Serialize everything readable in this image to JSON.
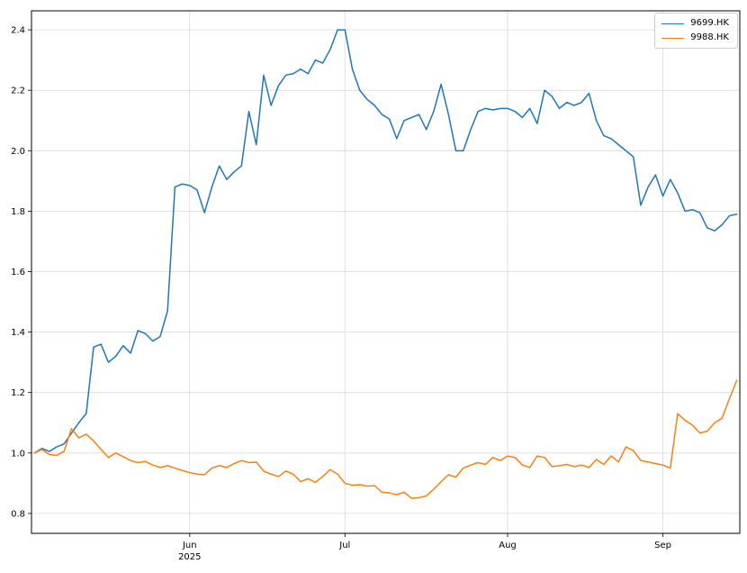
{
  "chart_data": {
    "type": "line",
    "title": "",
    "xlabel": "",
    "ylabel": "",
    "grid": true,
    "x_axis": {
      "tick_labels": [
        "Jun",
        "Jul",
        "Aug",
        "Sep"
      ],
      "tick_indices": [
        21,
        42,
        64,
        85
      ],
      "year_label": "2025",
      "year_under_tick": "Jun",
      "xlim_index": [
        -0.4,
        95.4
      ]
    },
    "y_axis": {
      "ticks": [
        0.8,
        1.0,
        1.2,
        1.4,
        1.6,
        1.8,
        2.0,
        2.2,
        2.4
      ],
      "tick_labels": [
        "0.8",
        "1.0",
        "1.2",
        "1.4",
        "1.6",
        "1.8",
        "2.0",
        "2.2",
        "2.4"
      ],
      "ylim": [
        0.734,
        2.463
      ]
    },
    "legend": {
      "position": "upper-right",
      "entries": [
        "9699.HK",
        "9988.HK"
      ]
    },
    "dates": [
      "2025-05-02",
      "2025-05-05",
      "2025-05-06",
      "2025-05-07",
      "2025-05-08",
      "2025-05-09",
      "2025-05-12",
      "2025-05-13",
      "2025-05-14",
      "2025-05-15",
      "2025-05-16",
      "2025-05-19",
      "2025-05-20",
      "2025-05-21",
      "2025-05-22",
      "2025-05-23",
      "2025-05-26",
      "2025-05-27",
      "2025-05-28",
      "2025-05-29",
      "2025-05-30",
      "2025-06-02",
      "2025-06-03",
      "2025-06-04",
      "2025-06-05",
      "2025-06-06",
      "2025-06-09",
      "2025-06-10",
      "2025-06-11",
      "2025-06-12",
      "2025-06-13",
      "2025-06-16",
      "2025-06-17",
      "2025-06-18",
      "2025-06-19",
      "2025-06-20",
      "2025-06-23",
      "2025-06-24",
      "2025-06-25",
      "2025-06-26",
      "2025-06-27",
      "2025-06-30",
      "2025-07-02",
      "2025-07-03",
      "2025-07-04",
      "2025-07-07",
      "2025-07-08",
      "2025-07-09",
      "2025-07-10",
      "2025-07-11",
      "2025-07-14",
      "2025-07-15",
      "2025-07-16",
      "2025-07-17",
      "2025-07-18",
      "2025-07-21",
      "2025-07-22",
      "2025-07-23",
      "2025-07-24",
      "2025-07-25",
      "2025-07-28",
      "2025-07-29",
      "2025-07-30",
      "2025-07-31",
      "2025-08-01",
      "2025-08-04",
      "2025-08-05",
      "2025-08-06",
      "2025-08-07",
      "2025-08-08",
      "2025-08-11",
      "2025-08-12",
      "2025-08-13",
      "2025-08-14",
      "2025-08-15",
      "2025-08-18",
      "2025-08-19",
      "2025-08-20",
      "2025-08-21",
      "2025-08-22",
      "2025-08-25",
      "2025-08-26",
      "2025-08-27",
      "2025-08-28",
      "2025-08-29",
      "2025-09-01",
      "2025-09-02",
      "2025-09-03",
      "2025-09-04",
      "2025-09-05",
      "2025-09-08",
      "2025-09-09",
      "2025-09-10",
      "2025-09-11",
      "2025-09-12",
      "2025-09-15"
    ],
    "series": [
      {
        "name": "9699.HK",
        "color": "#1f77b4",
        "values": [
          1.0,
          1.015,
          1.005,
          1.02,
          1.03,
          1.065,
          1.1,
          1.13,
          1.35,
          1.36,
          1.3,
          1.32,
          1.355,
          1.33,
          1.405,
          1.395,
          1.37,
          1.385,
          1.47,
          1.88,
          1.89,
          1.885,
          1.87,
          1.795,
          1.88,
          1.95,
          1.905,
          1.93,
          1.95,
          2.13,
          2.02,
          2.25,
          2.15,
          2.215,
          2.25,
          2.255,
          2.27,
          2.255,
          2.3,
          2.29,
          2.335,
          2.4,
          2.4,
          2.27,
          2.2,
          2.17,
          2.15,
          2.12,
          2.105,
          2.04,
          2.1,
          2.11,
          2.12,
          2.07,
          2.13,
          2.22,
          2.12,
          2.0,
          2.0,
          2.07,
          2.13,
          2.14,
          2.135,
          2.14,
          2.14,
          2.13,
          2.11,
          2.14,
          2.09,
          2.2,
          2.18,
          2.14,
          2.16,
          2.15,
          2.16,
          2.19,
          2.1,
          2.05,
          2.04,
          2.02,
          2.0,
          1.98,
          1.82,
          1.88,
          1.92,
          1.85,
          1.905,
          1.86,
          1.8,
          1.805,
          1.795,
          1.745,
          1.735,
          1.755,
          1.785,
          1.79
        ]
      },
      {
        "name": "9988.HK",
        "color": "#ff7f0e",
        "values": [
          1.0,
          1.012,
          0.995,
          0.992,
          1.005,
          1.08,
          1.05,
          1.062,
          1.04,
          1.012,
          0.985,
          1.0,
          0.988,
          0.975,
          0.968,
          0.972,
          0.96,
          0.952,
          0.958,
          0.95,
          0.942,
          0.935,
          0.93,
          0.928,
          0.95,
          0.958,
          0.952,
          0.965,
          0.975,
          0.968,
          0.97,
          0.94,
          0.93,
          0.922,
          0.94,
          0.93,
          0.905,
          0.915,
          0.903,
          0.922,
          0.945,
          0.93,
          0.9,
          0.893,
          0.895,
          0.89,
          0.892,
          0.87,
          0.868,
          0.862,
          0.87,
          0.85,
          0.852,
          0.858,
          0.88,
          0.905,
          0.928,
          0.92,
          0.95,
          0.96,
          0.968,
          0.962,
          0.985,
          0.975,
          0.99,
          0.985,
          0.96,
          0.952,
          0.99,
          0.985,
          0.955,
          0.958,
          0.962,
          0.955,
          0.96,
          0.952,
          0.978,
          0.962,
          0.99,
          0.97,
          1.02,
          1.008,
          0.975,
          0.97,
          0.965,
          0.96,
          0.95,
          1.13,
          1.108,
          1.092,
          1.066,
          1.072,
          1.1,
          1.115,
          1.18,
          1.24
        ]
      }
    ],
    "plot_styles": {
      "grid_color": "#d9d9d9",
      "spine_color": "#000000",
      "line_width": 1.5
    }
  }
}
